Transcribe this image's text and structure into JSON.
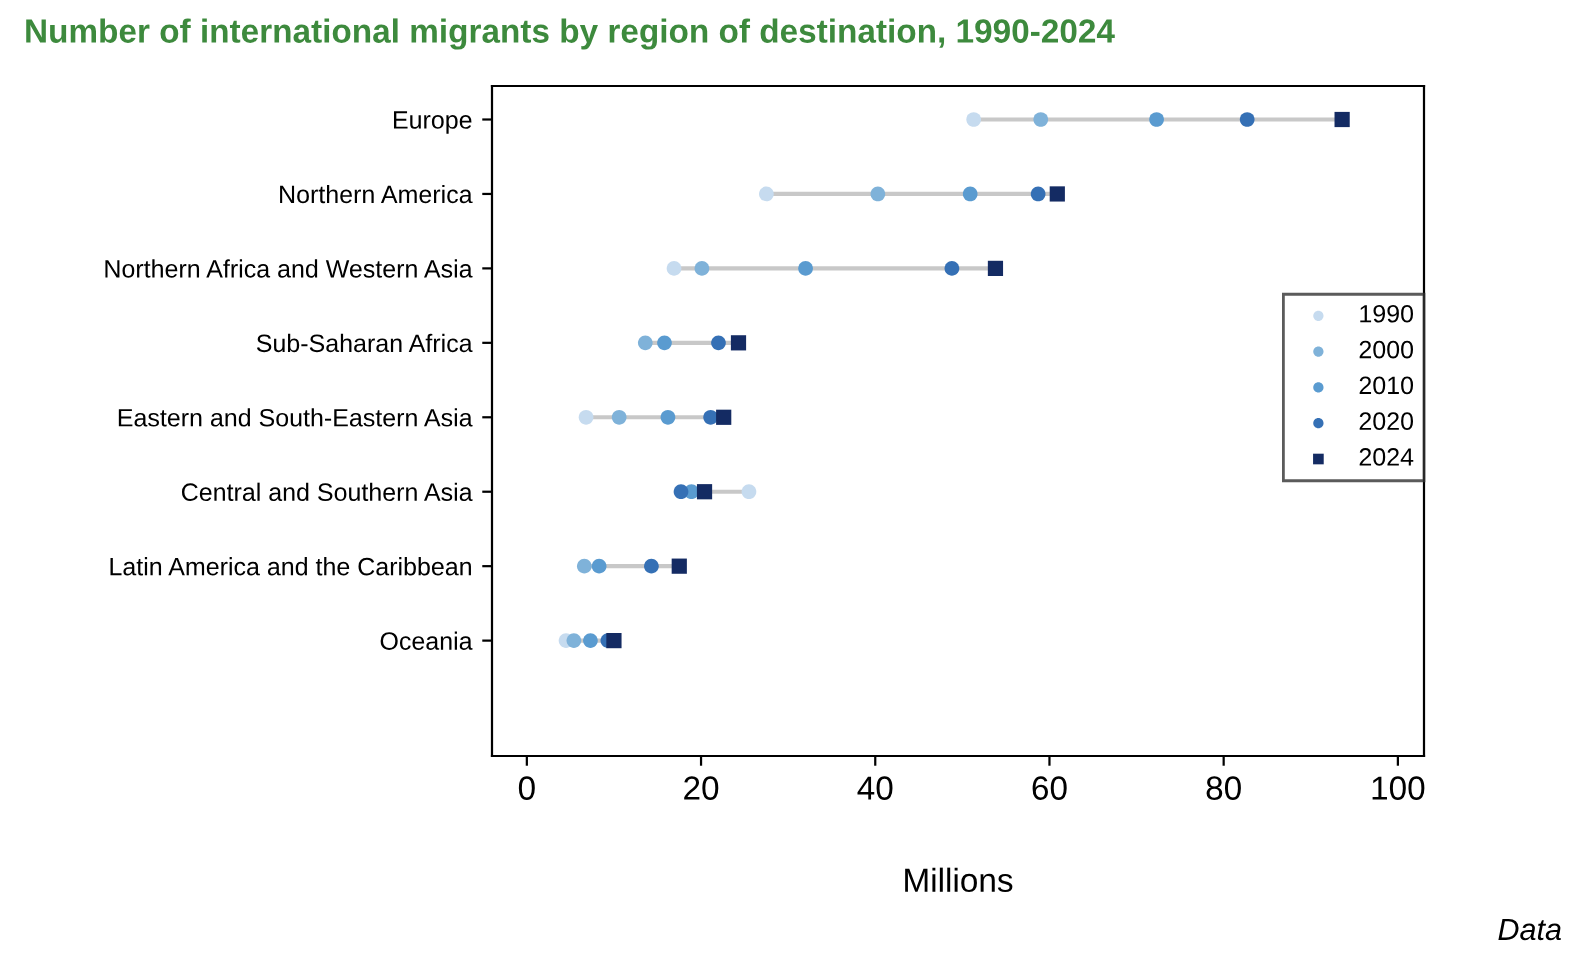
{
  "chart_data": {
    "type": "scatter",
    "orientation": "horizontal",
    "title": "Number of international migrants by region of destination, 1990-2024",
    "xlabel": "Millions",
    "annotations": [
      "Data"
    ],
    "categories": [
      "Europe",
      "Northern America",
      "Northern Africa and Western Asia",
      "Sub-Saharan Africa",
      "Eastern and South-Eastern Asia",
      "Central and Southern Asia",
      "Latin America and the Caribbean",
      "Oceania"
    ],
    "series": [
      {
        "name": "1990",
        "color": "#c6dbef",
        "marker": "circle",
        "values": [
          51.3,
          27.5,
          16.9,
          null,
          6.8,
          25.5,
          null,
          4.5
        ]
      },
      {
        "name": "2000",
        "color": "#7fb2d9",
        "marker": "circle",
        "values": [
          59.0,
          40.3,
          20.1,
          13.6,
          10.6,
          null,
          6.6,
          5.4
        ]
      },
      {
        "name": "2010",
        "color": "#5a9bd0",
        "marker": "circle",
        "values": [
          72.3,
          50.9,
          32.0,
          15.8,
          16.2,
          18.9,
          8.3,
          7.3
        ]
      },
      {
        "name": "2020",
        "color": "#3570b5",
        "marker": "circle",
        "values": [
          82.7,
          58.7,
          48.8,
          22.0,
          21.1,
          17.7,
          14.3,
          9.3
        ]
      },
      {
        "name": "2024",
        "color": "#142b63",
        "marker": "square",
        "values": [
          93.6,
          60.9,
          53.8,
          24.3,
          22.6,
          20.4,
          17.5,
          10.0
        ]
      }
    ],
    "xlim": [
      -4,
      103
    ],
    "xticks": [
      0,
      20,
      40,
      60,
      80,
      100
    ],
    "grid": false,
    "legend": "right"
  }
}
